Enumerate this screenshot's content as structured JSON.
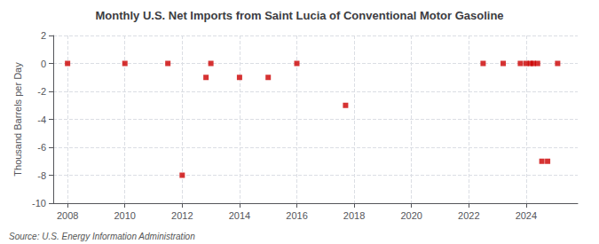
{
  "chart_data": {
    "type": "scatter",
    "title": "Monthly U.S. Net Imports from Saint Lucia of Conventional Motor Gasoline",
    "ylabel": "Thousand Barrels per Day",
    "annotations": [
      "Source: U.S. Energy Information Administration"
    ],
    "x": [
      2008.0,
      2010.0,
      2011.5,
      2012.0,
      2012.83,
      2013.0,
      2014.0,
      2015.0,
      2016.0,
      2017.7,
      2022.5,
      2023.2,
      2023.8,
      2024.0,
      2024.15,
      2024.25,
      2024.4,
      2024.55,
      2024.75,
      2025.1
    ],
    "values": [
      0.0,
      0.0,
      0.0,
      -8.0,
      -1.0,
      0.0,
      -1.0,
      -1.0,
      0.0,
      -3.0,
      0.0,
      0.0,
      0.0,
      0.0,
      0.0,
      0.0,
      0.0,
      -7.0,
      -7.0,
      0.0
    ],
    "color": "#cc0000",
    "marker": "square",
    "xlim": [
      2007.5,
      2025.8
    ],
    "xticks": [
      2008,
      2010,
      2012,
      2014,
      2016,
      2018,
      2020,
      2022,
      2024
    ],
    "ylim": [
      -10,
      2
    ],
    "yticks": [
      -10,
      -8,
      -6,
      -4,
      -2,
      0,
      2
    ],
    "grid": true
  }
}
